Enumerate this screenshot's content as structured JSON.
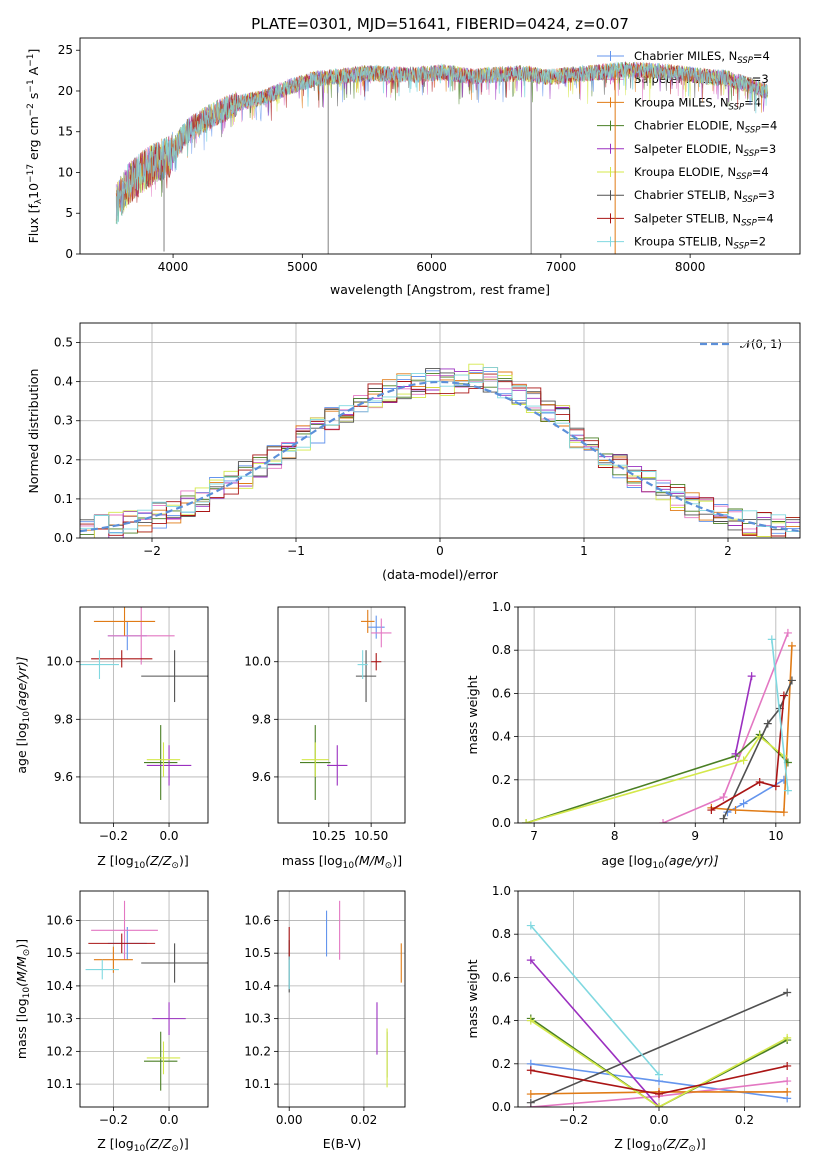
{
  "series": [
    {
      "name": "Chabrier MILES, N_SSP=4",
      "label_main": "Chabrier MILES, N",
      "label_sub": "SSP",
      "label_tail": "=4",
      "color": "#6495ed"
    },
    {
      "name": "Salpeter MILES, N_SSP=3",
      "label_main": "Salpeter MILES, N",
      "label_sub": "SSP",
      "label_tail": "=3",
      "color": "#e377c2"
    },
    {
      "name": "Kroupa MILES, N_SSP=4",
      "label_main": "Kroupa MILES, N",
      "label_sub": "SSP",
      "label_tail": "=4",
      "color": "#e07b16"
    },
    {
      "name": "Chabrier ELODIE, N_SSP=4",
      "label_main": "Chabrier ELODIE, N",
      "label_sub": "SSP",
      "label_tail": "=4",
      "color": "#4a7f24"
    },
    {
      "name": "Salpeter ELODIE, N_SSP=3",
      "label_main": "Salpeter ELODIE, N",
      "label_sub": "SSP",
      "label_tail": "=3",
      "color": "#9b30c0"
    },
    {
      "name": "Kroupa ELODIE, N_SSP=4",
      "label_main": "Kroupa ELODIE, N",
      "label_sub": "SSP",
      "label_tail": "=4",
      "color": "#d4e84a"
    },
    {
      "name": "Chabrier STELIB, N_SSP=3",
      "label_main": "Chabrier STELIB, N",
      "label_sub": "SSP",
      "label_tail": "=3",
      "color": "#505050"
    },
    {
      "name": "Salpeter STELIB, N_SSP=4",
      "label_main": "Salpeter STELIB, N",
      "label_sub": "SSP",
      "label_tail": "=4",
      "color": "#aa1515"
    },
    {
      "name": "Kroupa STELIB, N_SSP=2",
      "label_main": "Kroupa STELIB, N",
      "label_sub": "SSP",
      "label_tail": "=2",
      "color": "#80d8e0"
    }
  ],
  "chart_data": [
    {
      "id": "spectrum",
      "type": "line",
      "title": "PLATE=0301, MJD=51641, FIBERID=0424, z=0.07",
      "xlabel": "wavelength [Angstrom, rest frame]",
      "ylabel_main": "Flux [f",
      "ylabel_sub1": "λ",
      "ylabel_mid": "10",
      "ylabel_sup1": "−17",
      "ylabel_mid2": " erg cm",
      "ylabel_sup2": "−2",
      "ylabel_mid3": " s",
      "ylabel_sup3": "−1",
      "ylabel_mid4": " A",
      "ylabel_sup4": "−1",
      "ylabel_end": "]",
      "xlim": [
        3280,
        8850
      ],
      "ylim": [
        0,
        26.5
      ],
      "xticks": [
        4000,
        5000,
        6000,
        7000,
        8000
      ],
      "yticks": [
        0,
        5,
        10,
        15,
        20,
        25
      ],
      "legend": "top-right",
      "continuum": [
        [
          3560,
          6
        ],
        [
          3650,
          8.5
        ],
        [
          3750,
          10
        ],
        [
          3900,
          11.5
        ],
        [
          3980,
          12
        ],
        [
          4100,
          15
        ],
        [
          4300,
          17
        ],
        [
          4500,
          18.5
        ],
        [
          4700,
          19.2
        ],
        [
          4900,
          20.5
        ],
        [
          5100,
          21.5
        ],
        [
          5300,
          21.8
        ],
        [
          5500,
          22.2
        ],
        [
          5700,
          22
        ],
        [
          5900,
          22
        ],
        [
          6100,
          22.3
        ],
        [
          6300,
          21.8
        ],
        [
          6500,
          22
        ],
        [
          6700,
          22.2
        ],
        [
          6900,
          21.7
        ],
        [
          7100,
          22
        ],
        [
          7300,
          22.3
        ],
        [
          7500,
          22.6
        ],
        [
          7700,
          22.5
        ],
        [
          7900,
          22.2
        ],
        [
          8100,
          21.8
        ],
        [
          8300,
          21.5
        ],
        [
          8500,
          20.5
        ],
        [
          8600,
          19.8
        ]
      ],
      "spikes": [
        [
          5200,
          0
        ],
        [
          6770,
          0
        ],
        [
          7420,
          0
        ],
        [
          3930,
          0.3
        ]
      ]
    },
    {
      "id": "residuals",
      "type": "histogram",
      "xlabel": "(data-model)/error",
      "ylabel": "Normed distribution",
      "xlim": [
        -2.5,
        2.5
      ],
      "ylim": [
        0,
        0.55
      ],
      "xticks": [
        -2,
        -1,
        0,
        1,
        2
      ],
      "xtick_labels": [
        "−2",
        "−1",
        "0",
        "1",
        "2"
      ],
      "yticks": [
        0.0,
        0.1,
        0.2,
        0.3,
        0.4,
        0.5
      ],
      "gaussian_label": "𝒩(0, 1)",
      "bin_width": 0.1,
      "hist_example": [
        0.02,
        0.03,
        0.04,
        0.05,
        0.06,
        0.07,
        0.08,
        0.09,
        0.1,
        0.12,
        0.14,
        0.16,
        0.18,
        0.2,
        0.22,
        0.25,
        0.27,
        0.3,
        0.31,
        0.33,
        0.35,
        0.36,
        0.38,
        0.4,
        0.41,
        0.43,
        0.44,
        0.45,
        0.47,
        0.45,
        0.46,
        0.44,
        0.43,
        0.41,
        0.39,
        0.37,
        0.35,
        0.33,
        0.3,
        0.28,
        0.26,
        0.23,
        0.21,
        0.19,
        0.17,
        0.15,
        0.13,
        0.11,
        0.1,
        0.08
      ]
    },
    {
      "id": "z_age",
      "type": "scatter",
      "xlabel_main": "Z [log",
      "xlabel_sub": "10",
      "xlabel_tail": "(Z/Z",
      "xlabel_sun": "⊙",
      "xlabel_end": ")]",
      "ylabel_main": "age  [log",
      "ylabel_sub": "10",
      "ylabel_tail": "(age/yr)]",
      "xlim": [
        -0.32,
        0.14
      ],
      "ylim": [
        9.44,
        10.19
      ],
      "xticks": [
        -0.2,
        0.0
      ],
      "xtick_labels": [
        "−0.2",
        "0.0"
      ],
      "yticks": [
        9.6,
        9.8,
        10.0
      ],
      "ytick_labels": [
        "9.6",
        "9.8",
        "10.0"
      ],
      "points": [
        {
          "s": 0,
          "x": -0.15,
          "y": 10.09,
          "ex": 0.07,
          "ey": 0.05
        },
        {
          "s": 1,
          "x": -0.1,
          "y": 10.09,
          "ex": 0.12,
          "ey": 0.1
        },
        {
          "s": 2,
          "x": -0.16,
          "y": 10.14,
          "ex": 0.11,
          "ey": 0.05
        },
        {
          "s": 3,
          "x": -0.03,
          "y": 9.65,
          "ex": 0.06,
          "ey": 0.13
        },
        {
          "s": 4,
          "x": 0.0,
          "y": 9.64,
          "ex": 0.08,
          "ey": 0.07
        },
        {
          "s": 5,
          "x": -0.02,
          "y": 9.66,
          "ex": 0.06,
          "ey": 0.06
        },
        {
          "s": 6,
          "x": 0.02,
          "y": 9.95,
          "ex": 0.12,
          "ey": 0.09
        },
        {
          "s": 7,
          "x": -0.17,
          "y": 10.01,
          "ex": 0.11,
          "ey": 0.03
        },
        {
          "s": 8,
          "x": -0.25,
          "y": 9.99,
          "ex": 0.07,
          "ey": 0.05
        }
      ]
    },
    {
      "id": "mass_age",
      "type": "scatter",
      "xlabel_main": "mass [log",
      "xlabel_sub": "10",
      "xlabel_tail": "(M/M",
      "xlabel_sun": "⊙",
      "xlabel_end": ")]",
      "xlim": [
        9.95,
        10.7
      ],
      "ylim": [
        9.44,
        10.19
      ],
      "xticks": [
        10.25,
        10.5
      ],
      "xtick_labels": [
        "10.25",
        "10.50"
      ],
      "yticks": [
        9.6,
        9.8,
        10.0
      ],
      "ytick_labels": [
        "9.6",
        "9.8",
        "10.0"
      ],
      "points": [
        {
          "s": 0,
          "x": 10.53,
          "y": 10.12,
          "ex": 0.05,
          "ey": 0.04
        },
        {
          "s": 1,
          "x": 10.56,
          "y": 10.1,
          "ex": 0.06,
          "ey": 0.05
        },
        {
          "s": 2,
          "x": 10.48,
          "y": 10.14,
          "ex": 0.04,
          "ey": 0.04
        },
        {
          "s": 3,
          "x": 10.17,
          "y": 9.65,
          "ex": 0.09,
          "ey": 0.13
        },
        {
          "s": 4,
          "x": 10.3,
          "y": 9.64,
          "ex": 0.06,
          "ey": 0.07
        },
        {
          "s": 5,
          "x": 10.17,
          "y": 9.66,
          "ex": 0.08,
          "ey": 0.06
        },
        {
          "s": 6,
          "x": 10.47,
          "y": 9.95,
          "ex": 0.06,
          "ey": 0.09
        },
        {
          "s": 7,
          "x": 10.53,
          "y": 10.0,
          "ex": 0.03,
          "ey": 0.03
        },
        {
          "s": 8,
          "x": 10.45,
          "y": 9.99,
          "ex": 0.03,
          "ey": 0.05
        }
      ]
    },
    {
      "id": "age_weight",
      "type": "line",
      "xlabel_main": "age  [log",
      "xlabel_sub": "10",
      "xlabel_tail": "(age/yr)]",
      "ylabel": "mass weight",
      "xlim": [
        6.8,
        10.3
      ],
      "ylim": [
        0,
        1
      ],
      "xticks": [
        7,
        8,
        9,
        10
      ],
      "yticks": [
        0.0,
        0.2,
        0.4,
        0.6,
        0.8,
        1.0
      ],
      "lines": [
        {
          "s": 0,
          "pts": [
            [
              9.4,
              0.05
            ],
            [
              9.6,
              0.09
            ],
            [
              10.1,
              0.2
            ]
          ]
        },
        {
          "s": 1,
          "pts": [
            [
              8.6,
              0.0
            ],
            [
              9.35,
              0.12
            ],
            [
              10.15,
              0.88
            ]
          ]
        },
        {
          "s": 2,
          "pts": [
            [
              9.2,
              0.07
            ],
            [
              9.5,
              0.06
            ],
            [
              10.1,
              0.05
            ],
            [
              10.2,
              0.82
            ]
          ]
        },
        {
          "s": 3,
          "pts": [
            [
              6.9,
              0.0
            ],
            [
              9.5,
              0.31
            ],
            [
              9.8,
              0.41
            ],
            [
              10.15,
              0.28
            ]
          ]
        },
        {
          "s": 4,
          "pts": [
            [
              9.5,
              0.32
            ],
            [
              9.7,
              0.68
            ]
          ]
        },
        {
          "s": 5,
          "pts": [
            [
              6.9,
              0.0
            ],
            [
              9.6,
              0.29
            ],
            [
              9.8,
              0.4
            ],
            [
              10.1,
              0.31
            ]
          ]
        },
        {
          "s": 6,
          "pts": [
            [
              9.35,
              0.02
            ],
            [
              9.9,
              0.46
            ],
            [
              10.05,
              0.53
            ],
            [
              10.2,
              0.66
            ]
          ]
        },
        {
          "s": 7,
          "pts": [
            [
              9.2,
              0.06
            ],
            [
              9.8,
              0.19
            ],
            [
              10.0,
              0.17
            ],
            [
              10.1,
              0.59
            ]
          ]
        },
        {
          "s": 8,
          "pts": [
            [
              9.95,
              0.85
            ],
            [
              10.15,
              0.15
            ]
          ]
        }
      ]
    },
    {
      "id": "z_mass",
      "type": "scatter",
      "xlabel_main": "Z [log",
      "xlabel_sub": "10",
      "xlabel_tail": "(Z/Z",
      "xlabel_sun": "⊙",
      "xlabel_end": ")]",
      "ylabel_main": "mass [log",
      "ylabel_sub": "10",
      "ylabel_tail": "(M/M",
      "ylabel_sun": "⊙",
      "ylabel_end": ")]",
      "xlim": [
        -0.32,
        0.14
      ],
      "ylim": [
        10.03,
        10.69
      ],
      "xticks": [
        -0.2,
        0.0
      ],
      "xtick_labels": [
        "−0.2",
        "0.0"
      ],
      "yticks": [
        10.1,
        10.2,
        10.3,
        10.4,
        10.5,
        10.6
      ],
      "ytick_labels": [
        "10.1",
        "10.2",
        "10.3",
        "10.4",
        "10.5",
        "10.6"
      ],
      "points": [
        {
          "s": 0,
          "x": -0.15,
          "y": 10.53,
          "ex": 0.07,
          "ey": 0.05
        },
        {
          "s": 1,
          "x": -0.16,
          "y": 10.57,
          "ex": 0.12,
          "ey": 0.09
        },
        {
          "s": 2,
          "x": -0.2,
          "y": 10.48,
          "ex": 0.07,
          "ey": 0.04
        },
        {
          "s": 3,
          "x": -0.03,
          "y": 10.17,
          "ex": 0.06,
          "ey": 0.09
        },
        {
          "s": 4,
          "x": 0.0,
          "y": 10.3,
          "ex": 0.06,
          "ey": 0.05
        },
        {
          "s": 5,
          "x": -0.02,
          "y": 10.18,
          "ex": 0.06,
          "ey": 0.05
        },
        {
          "s": 6,
          "x": 0.02,
          "y": 10.47,
          "ex": 0.12,
          "ey": 0.06
        },
        {
          "s": 7,
          "x": -0.17,
          "y": 10.53,
          "ex": 0.12,
          "ey": 0.03
        },
        {
          "s": 8,
          "x": -0.24,
          "y": 10.45,
          "ex": 0.06,
          "ey": 0.03
        }
      ]
    },
    {
      "id": "ebv_mass",
      "type": "scatter",
      "xlabel": "E(B-V)",
      "xlim": [
        -0.003,
        0.031
      ],
      "ylim": [
        10.03,
        10.69
      ],
      "xticks": [
        0.0,
        0.02
      ],
      "xtick_labels": [
        "0.00",
        "0.02"
      ],
      "yticks": [
        10.1,
        10.2,
        10.3,
        10.4,
        10.5,
        10.6
      ],
      "ytick_labels": [
        "10.1",
        "10.2",
        "10.3",
        "10.4",
        "10.5",
        "10.6"
      ],
      "points": [
        {
          "s": 0,
          "x": 0.01,
          "y": 10.56,
          "ex": 0,
          "ey": 0.07
        },
        {
          "s": 1,
          "x": 0.0135,
          "y": 10.57,
          "ex": 0,
          "ey": 0.09
        },
        {
          "s": 2,
          "x": 0.03,
          "y": 10.47,
          "ex": 0,
          "ey": 0.06
        },
        {
          "s": 3,
          "x": 0.0262,
          "y": 10.19,
          "ex": 0,
          "ey": 0.07
        },
        {
          "s": 4,
          "x": 0.0235,
          "y": 10.27,
          "ex": 0,
          "ey": 0.08
        },
        {
          "s": 5,
          "x": 0.0262,
          "y": 10.18,
          "ex": 0,
          "ey": 0.09
        },
        {
          "s": 6,
          "x": 0.0,
          "y": 10.46,
          "ex": 0,
          "ey": 0.08
        },
        {
          "s": 7,
          "x": 0.0,
          "y": 10.53,
          "ex": 0,
          "ey": 0.05
        },
        {
          "s": 8,
          "x": 0.0,
          "y": 10.44,
          "ex": 0,
          "ey": 0.05
        }
      ]
    },
    {
      "id": "z_weight",
      "type": "line",
      "xlabel_main": "Z [log",
      "xlabel_sub": "10",
      "xlabel_tail": "(Z/Z",
      "xlabel_sun": "⊙",
      "xlabel_end": ")]",
      "ylabel": "mass weight",
      "xlim": [
        -0.33,
        0.33
      ],
      "ylim": [
        0,
        1
      ],
      "xticks": [
        -0.2,
        0.0,
        0.2
      ],
      "xtick_labels": [
        "−0.2",
        "0.0",
        "0.2"
      ],
      "yticks": [
        0.0,
        0.2,
        0.4,
        0.6,
        0.8,
        1.0
      ],
      "lines": [
        {
          "s": 0,
          "pts": [
            [
              -0.3,
              0.2
            ],
            [
              0.0,
              0.12
            ],
            [
              0.3,
              0.04
            ]
          ]
        },
        {
          "s": 1,
          "pts": [
            [
              -0.3,
              0.0
            ],
            [
              0.0,
              0.05
            ],
            [
              0.3,
              0.12
            ]
          ]
        },
        {
          "s": 2,
          "pts": [
            [
              -0.3,
              0.06
            ],
            [
              0.0,
              0.07
            ],
            [
              0.3,
              0.07
            ]
          ]
        },
        {
          "s": 3,
          "pts": [
            [
              -0.3,
              0.41
            ],
            [
              0.0,
              0.0
            ],
            [
              0.3,
              0.31
            ]
          ]
        },
        {
          "s": 4,
          "pts": [
            [
              -0.3,
              0.68
            ],
            [
              0.0,
              0.0
            ]
          ]
        },
        {
          "s": 5,
          "pts": [
            [
              -0.3,
              0.4
            ],
            [
              0.0,
              0.0
            ],
            [
              0.3,
              0.32
            ]
          ]
        },
        {
          "s": 6,
          "pts": [
            [
              -0.3,
              0.02
            ],
            [
              0.3,
              0.53
            ]
          ]
        },
        {
          "s": 7,
          "pts": [
            [
              -0.3,
              0.17
            ],
            [
              0.0,
              0.06
            ],
            [
              0.3,
              0.19
            ]
          ]
        },
        {
          "s": 8,
          "pts": [
            [
              -0.3,
              0.84
            ],
            [
              0.0,
              0.15
            ]
          ]
        }
      ]
    }
  ]
}
